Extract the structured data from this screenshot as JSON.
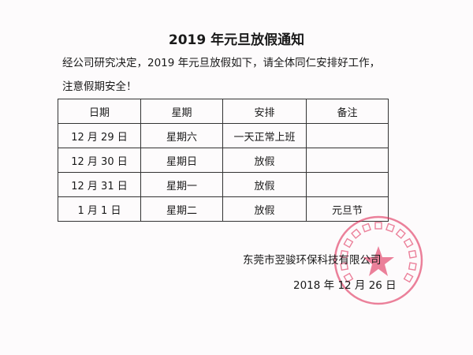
{
  "title": "2019 年元旦放假通知",
  "intro_line1": "经公司研究决定，2019 年元旦放假如下，请全体同仁安排好工作，",
  "intro_line2": "注意假期安全！",
  "table": {
    "headers": [
      "日期",
      "星期",
      "安排",
      "备注"
    ],
    "rows": [
      [
        "12 月 29 日",
        "星期六",
        "一天正常上班",
        ""
      ],
      [
        "12 月 30 日",
        "星期日",
        "放假",
        ""
      ],
      [
        "12 月 31 日",
        "星期一",
        "放假",
        ""
      ],
      [
        "1 月 1 日",
        "星期二",
        "放假",
        "元旦节"
      ]
    ]
  },
  "company": "东莞市翌骏环保科技有限公司",
  "date": "2018 年 12 月 26 日",
  "stamp": {
    "text": "东莞市翌骏环保科技有限公司",
    "color": "#e0305a"
  }
}
